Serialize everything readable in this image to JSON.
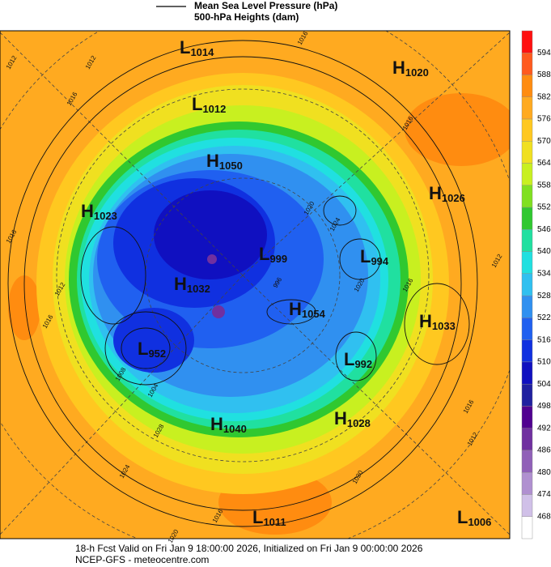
{
  "legend": [
    {
      "label": "Mean Sea Level Pressure (hPa)"
    },
    {
      "label": "500-hPa Heights (dam)"
    }
  ],
  "colorbar": {
    "ticks": [
      594,
      588,
      582,
      576,
      570,
      564,
      558,
      552,
      546,
      540,
      534,
      528,
      522,
      516,
      510,
      504,
      498,
      492,
      486,
      480,
      474,
      468
    ],
    "colors": [
      "#ff1010",
      "#ff5a1e",
      "#ff8c10",
      "#ffaa20",
      "#ffc820",
      "#f0e020",
      "#c8f020",
      "#80e020",
      "#30c830",
      "#20e0a0",
      "#20e0e0",
      "#30c0f0",
      "#3090f0",
      "#2060f0",
      "#1030e0",
      "#1010c0",
      "#2020a0",
      "#500090",
      "#7030a0",
      "#9060b8",
      "#b090d0",
      "#d0c0e8",
      "#ffffff"
    ]
  },
  "pressure_centers": [
    {
      "letter": "L",
      "value": 1014
    },
    {
      "letter": "H",
      "value": 1020
    },
    {
      "letter": "L",
      "value": 1012
    },
    {
      "letter": "H",
      "value": 1050
    },
    {
      "letter": "H",
      "value": 1026
    },
    {
      "letter": "H",
      "value": 1023
    },
    {
      "letter": "L",
      "value": 999
    },
    {
      "letter": "L",
      "value": 994
    },
    {
      "letter": "H",
      "value": 1032
    },
    {
      "letter": "H",
      "value": 1054
    },
    {
      "letter": "H",
      "value": 1033
    },
    {
      "letter": "L",
      "value": 952
    },
    {
      "letter": "L",
      "value": 992
    },
    {
      "letter": "H",
      "value": 1040
    },
    {
      "letter": "H",
      "value": 1028
    },
    {
      "letter": "L",
      "value": 1011
    },
    {
      "letter": "L",
      "value": 1006
    }
  ],
  "contour_labels": [
    1016,
    1012,
    1016,
    1012,
    1016,
    1012,
    1016,
    1016,
    1020,
    1024,
    1020,
    1016,
    1012,
    1008,
    1004,
    996,
    1028,
    1020,
    1024,
    1016,
    1012,
    1020,
    1016
  ],
  "footer": [
    "18-h Fcst Valid on Fri Jan  9 18:00:00 2026, Initialized on Fri Jan  9 00:00:00 2026",
    "NCEP-GFS - meteocentre.com"
  ]
}
